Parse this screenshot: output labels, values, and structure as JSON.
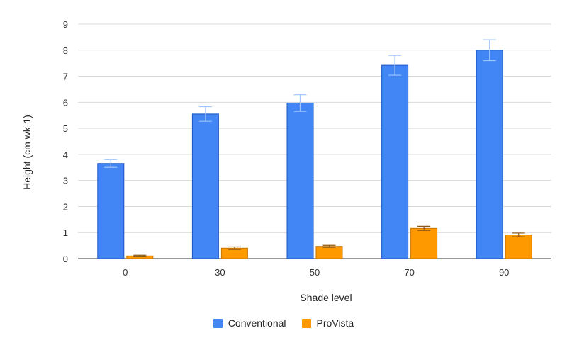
{
  "chart_data": {
    "type": "bar",
    "title": "",
    "xlabel": "Shade level",
    "ylabel": "Height (cm wk-1)",
    "categories": [
      "0",
      "30",
      "50",
      "70",
      "90"
    ],
    "ylim": [
      0,
      9
    ],
    "yticks": [
      0,
      1,
      2,
      3,
      4,
      5,
      6,
      7,
      8,
      9
    ],
    "grid": true,
    "legend_position": "bottom",
    "series": [
      {
        "name": "Conventional",
        "color": "#4285f4",
        "edge": "#1a56c4",
        "values": [
          3.65,
          5.55,
          5.97,
          7.42,
          8.0
        ],
        "errors": [
          0.15,
          0.28,
          0.32,
          0.38,
          0.4
        ]
      },
      {
        "name": "ProVista",
        "color": "#ff9900",
        "edge": "#c97400",
        "values": [
          0.1,
          0.4,
          0.47,
          1.16,
          0.91
        ],
        "errors": [
          0.03,
          0.05,
          0.04,
          0.08,
          0.07
        ]
      }
    ]
  }
}
